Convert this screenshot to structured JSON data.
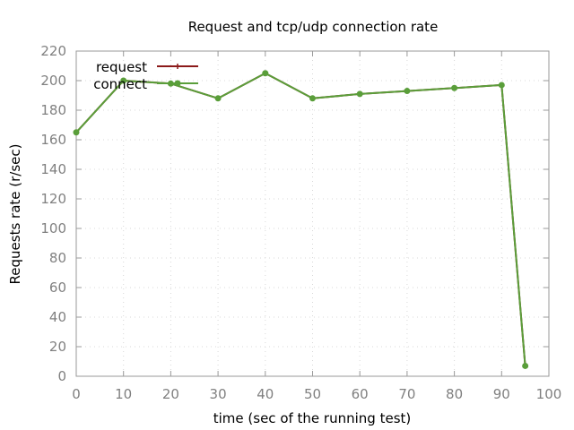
{
  "chart_data": {
    "type": "line",
    "title": "Request and tcp/udp connection rate",
    "xlabel": "time (sec of the running test)",
    "ylabel": "Requests rate (r/sec)",
    "xlim": [
      0,
      100
    ],
    "ylim": [
      0,
      220
    ],
    "xticks": [
      0,
      10,
      20,
      30,
      40,
      50,
      60,
      70,
      80,
      90,
      100
    ],
    "yticks": [
      0,
      20,
      40,
      60,
      80,
      100,
      120,
      140,
      160,
      180,
      200,
      220
    ],
    "grid": true,
    "legend_position": "top-left",
    "x": [
      0,
      10,
      20,
      30,
      40,
      50,
      60,
      70,
      80,
      90,
      95
    ],
    "series": [
      {
        "name": "request",
        "color": "#8b1a1a",
        "marker": "plus",
        "values": [
          165,
          200,
          198,
          188,
          205,
          188,
          191,
          193,
          195,
          197,
          7
        ]
      },
      {
        "name": "connect",
        "color": "#5a9e3a",
        "marker": "circle",
        "values": [
          165,
          200,
          198,
          188,
          205,
          188,
          191,
          193,
          195,
          197,
          7
        ]
      }
    ]
  }
}
